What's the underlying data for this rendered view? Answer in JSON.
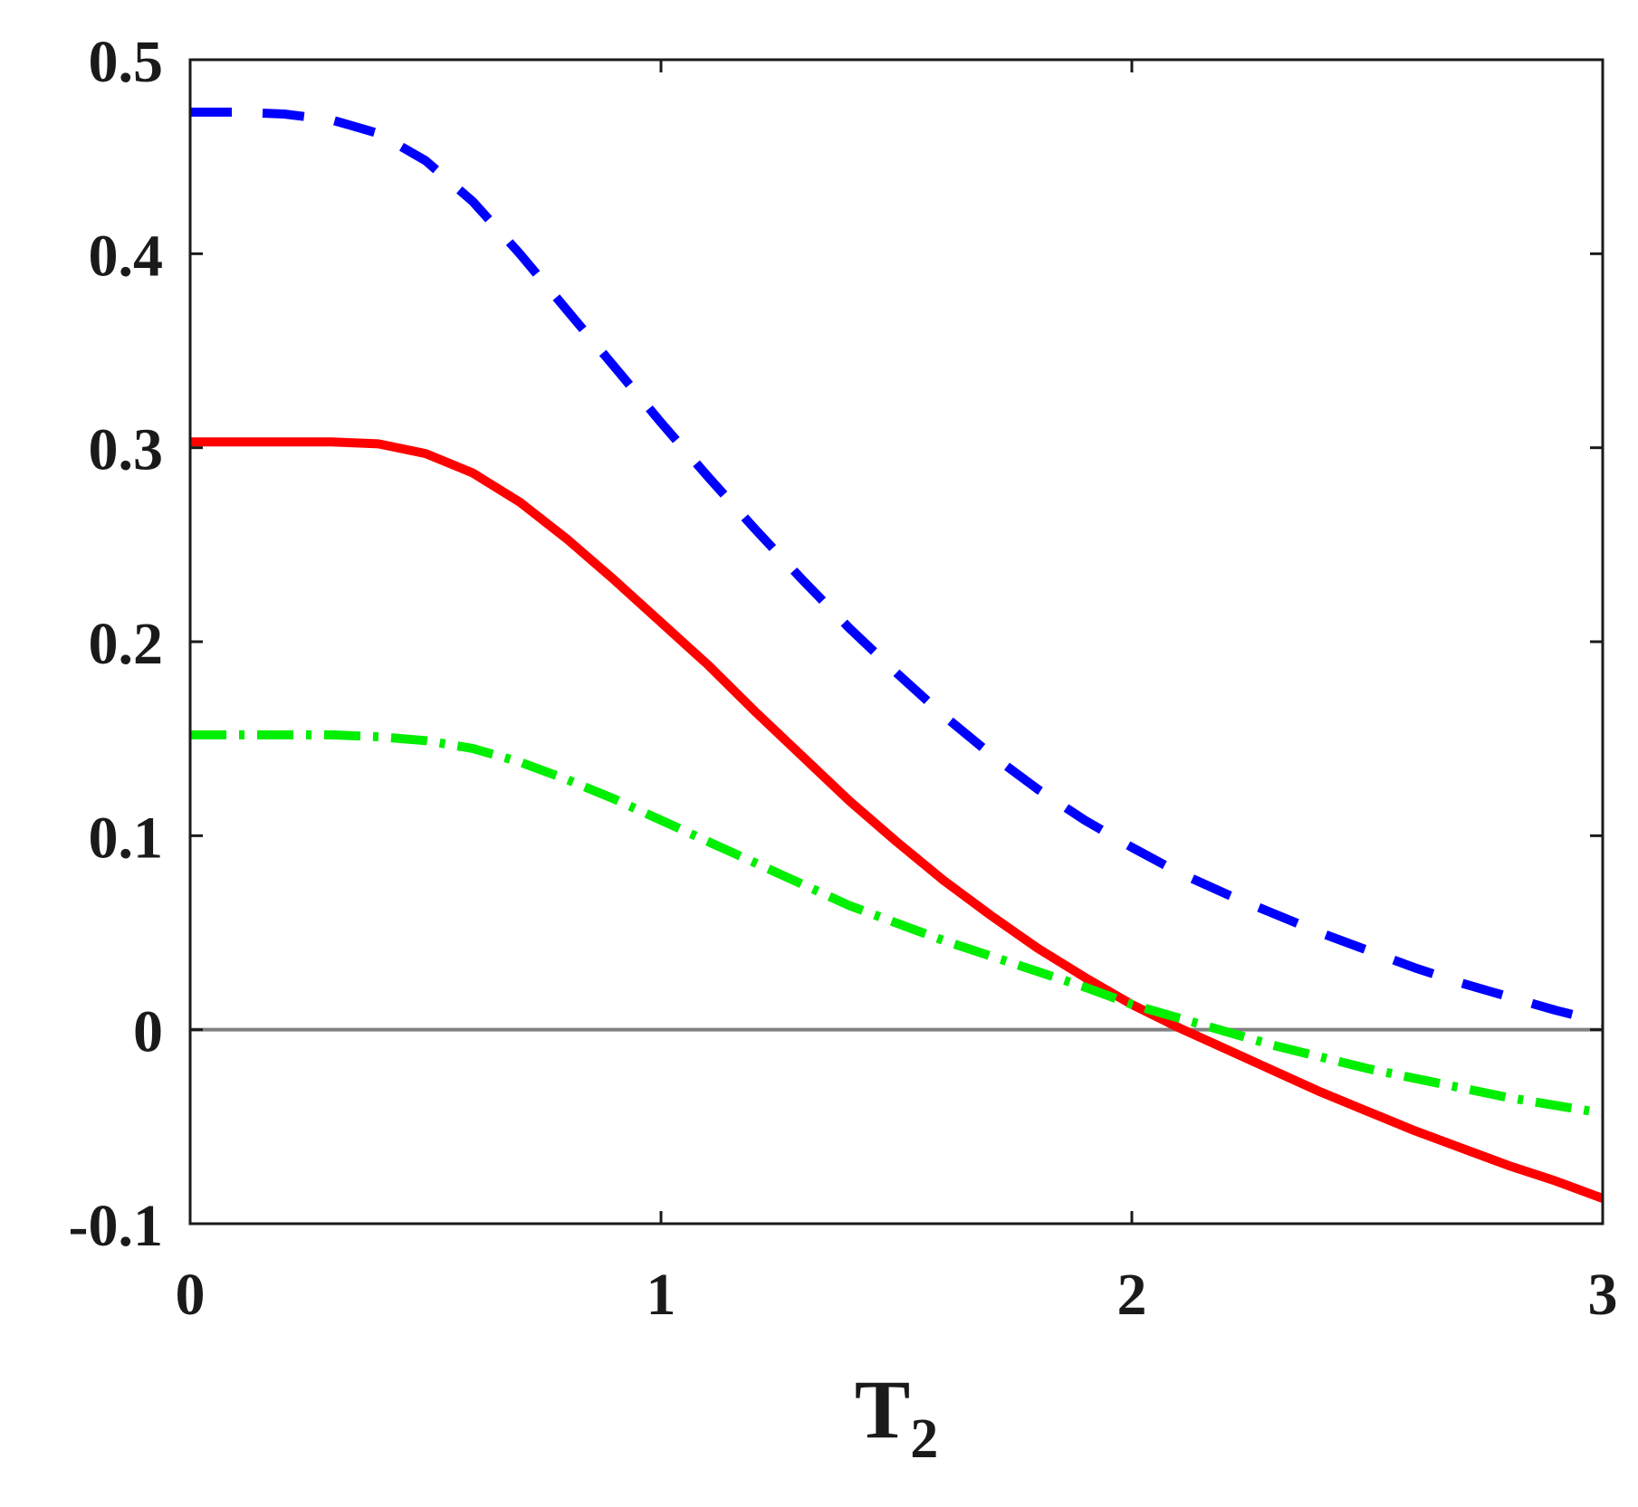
{
  "chart_data": {
    "type": "line",
    "title": "",
    "xlabel": "T",
    "xlabel_subscript": "2",
    "ylabel": "",
    "xlim": [
      0,
      3
    ],
    "ylim": [
      -0.1,
      0.5
    ],
    "x_ticks": [
      0,
      1,
      2,
      3
    ],
    "x_tick_labels": [
      "0",
      "1",
      "2",
      "3"
    ],
    "y_ticks": [
      -0.1,
      0,
      0.1,
      0.2,
      0.3,
      0.4,
      0.5
    ],
    "y_tick_labels": [
      "-0.1",
      "0",
      "0.1",
      "0.2",
      "0.3",
      "0.4",
      "0.5"
    ],
    "grid": false,
    "reference_line": {
      "y": 0,
      "color": "#808080"
    },
    "series": [
      {
        "style": "dashed",
        "color": "#0000ff",
        "x": [
          0,
          0.1,
          0.2,
          0.3,
          0.4,
          0.5,
          0.6,
          0.7,
          0.8,
          0.9,
          1.0,
          1.1,
          1.2,
          1.3,
          1.4,
          1.5,
          1.6,
          1.7,
          1.8,
          1.9,
          2.0,
          2.1,
          2.2,
          2.3,
          2.4,
          2.5,
          2.6,
          2.7,
          2.8,
          2.9,
          3.0
        ],
        "y": [
          0.473,
          0.473,
          0.472,
          0.469,
          0.462,
          0.448,
          0.427,
          0.4,
          0.371,
          0.342,
          0.313,
          0.285,
          0.258,
          0.232,
          0.207,
          0.184,
          0.162,
          0.142,
          0.124,
          0.108,
          0.094,
          0.081,
          0.07,
          0.06,
          0.05,
          0.041,
          0.032,
          0.024,
          0.017,
          0.01,
          0.004
        ]
      },
      {
        "style": "solid",
        "color": "#ff0000",
        "x": [
          0,
          0.1,
          0.2,
          0.3,
          0.4,
          0.5,
          0.6,
          0.7,
          0.8,
          0.9,
          1.0,
          1.1,
          1.2,
          1.3,
          1.4,
          1.5,
          1.6,
          1.7,
          1.8,
          1.9,
          2.0,
          2.1,
          2.2,
          2.3,
          2.4,
          2.5,
          2.6,
          2.7,
          2.8,
          2.9,
          3.0
        ],
        "y": [
          0.303,
          0.303,
          0.303,
          0.303,
          0.302,
          0.297,
          0.287,
          0.272,
          0.253,
          0.232,
          0.21,
          0.188,
          0.164,
          0.141,
          0.118,
          0.097,
          0.077,
          0.059,
          0.042,
          0.027,
          0.013,
          0.001,
          -0.01,
          -0.021,
          -0.032,
          -0.042,
          -0.052,
          -0.061,
          -0.07,
          -0.078,
          -0.087
        ]
      },
      {
        "style": "dash-dot",
        "color": "#00ee00",
        "x": [
          0,
          0.1,
          0.2,
          0.3,
          0.4,
          0.5,
          0.6,
          0.7,
          0.8,
          0.9,
          1.0,
          1.1,
          1.2,
          1.3,
          1.4,
          1.5,
          1.6,
          1.7,
          1.8,
          1.9,
          2.0,
          2.1,
          2.2,
          2.3,
          2.4,
          2.5,
          2.6,
          2.7,
          2.8,
          2.9,
          3.0
        ],
        "y": [
          0.152,
          0.152,
          0.152,
          0.152,
          0.151,
          0.149,
          0.145,
          0.138,
          0.129,
          0.119,
          0.108,
          0.097,
          0.086,
          0.075,
          0.064,
          0.055,
          0.046,
          0.038,
          0.03,
          0.022,
          0.013,
          0.006,
          -0.001,
          -0.008,
          -0.014,
          -0.02,
          -0.025,
          -0.03,
          -0.035,
          -0.039,
          -0.043
        ]
      }
    ]
  }
}
